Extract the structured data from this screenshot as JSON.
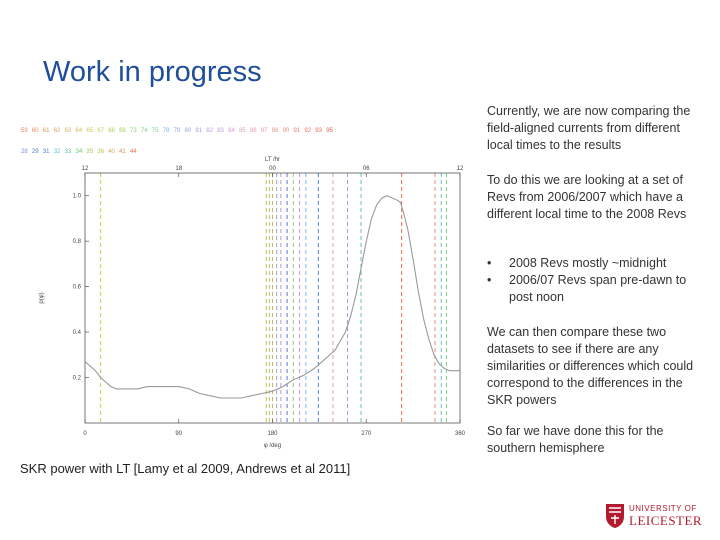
{
  "slide": {
    "title": "Work in progress",
    "caption": "SKR power with LT [Lamy et al 2009, Andrews et al 2011]",
    "paragraphs": [
      "Currently, we are now comparing the field-aligned currents from different local times to the results",
      "To do this we are looking at a set of Revs from 2006/2007 which have a different local time to the 2008 Revs",
      "We can then compare these two datasets to see if there are any similarities or differences which could correspond to the differences in the SKR powers",
      "So far we have done this for the southern hemisphere"
    ],
    "bullets": [
      "2008 Revs mostly ~midnight",
      "2006/07 Revs span pre-dawn to post noon"
    ],
    "bullet_glyph": "•",
    "logo": {
      "line1": "UNIVERSITY OF",
      "line2": "LEICESTER",
      "color": "#b01c2e"
    }
  },
  "chart_data": {
    "type": "line",
    "xlabel": "φ /deg",
    "ylabel": "p(φ)",
    "top_axis_label": "LT /hr",
    "xlim": [
      0,
      360
    ],
    "ylim": [
      0.0,
      1.1
    ],
    "xticks": [
      "0",
      "90",
      "180",
      "270",
      "360"
    ],
    "yticks": [
      "0.2",
      "0.4",
      "0.6",
      "0.8",
      "1.0"
    ],
    "top_ticks": [
      {
        "lt": "12",
        "phi": 0
      },
      {
        "lt": "18",
        "phi": 90
      },
      {
        "lt": "00",
        "phi": 180
      },
      {
        "lt": "06",
        "phi": 270
      },
      {
        "lt": "12",
        "phi": 360
      }
    ],
    "legend_rows": [
      {
        "labels": [
          "59",
          "60",
          "61",
          "62",
          "63",
          "64",
          "65",
          "67",
          "68",
          "69",
          "73",
          "74",
          "75",
          "78",
          "79",
          "80",
          "81",
          "82",
          "83",
          "84",
          "85",
          "86",
          "87",
          "88",
          "90",
          "91",
          "92",
          "93",
          "95"
        ],
        "colors": [
          "#e9876a",
          "#e58a5e",
          "#e0955a",
          "#dca05a",
          "#d9ac5a",
          "#d6b55a",
          "#d4c05a",
          "#c6c85a",
          "#b3cc5a",
          "#9fce5e",
          "#8cd06c",
          "#7dd280",
          "#78d4a0",
          "#7fb9e6",
          "#8aa8e8",
          "#9aa0ea",
          "#a99ae4",
          "#b899dc",
          "#c59ad5",
          "#d39ad0",
          "#de9ac8",
          "#e49ab4",
          "#e99a9e",
          "#ea958c",
          "#e98a7c",
          "#e8806c",
          "#e5765e",
          "#e26d56",
          "#de6650"
        ]
      },
      {
        "labels": [
          "28",
          "29",
          "31",
          "32",
          "33",
          "34",
          "35",
          "36",
          "40",
          "41",
          "44"
        ],
        "colors": [
          "#7a8fe0",
          "#5d78d8",
          "#4b86d6",
          "#5cc4d6",
          "#58c8a6",
          "#62c870",
          "#9ccf56",
          "#c8c04e",
          "#d6a64e",
          "#d98e58",
          "#dc7556"
        ]
      }
    ],
    "curve": {
      "name": "p(φ)",
      "color": "#9a9a9a",
      "x": [
        0,
        5,
        10,
        15,
        20,
        25,
        30,
        40,
        50,
        60,
        70,
        80,
        90,
        100,
        110,
        120,
        130,
        140,
        150,
        160,
        170,
        180,
        190,
        200,
        210,
        220,
        230,
        240,
        245,
        250,
        255,
        260,
        265,
        270,
        275,
        280,
        285,
        290,
        295,
        300,
        303,
        306,
        310,
        315,
        320,
        325,
        330,
        335,
        340,
        345,
        350,
        355,
        360
      ],
      "y": [
        0.27,
        0.25,
        0.23,
        0.2,
        0.18,
        0.16,
        0.15,
        0.15,
        0.15,
        0.16,
        0.16,
        0.16,
        0.16,
        0.15,
        0.13,
        0.12,
        0.11,
        0.11,
        0.11,
        0.12,
        0.13,
        0.14,
        0.16,
        0.19,
        0.21,
        0.24,
        0.28,
        0.32,
        0.36,
        0.4,
        0.47,
        0.56,
        0.68,
        0.8,
        0.9,
        0.96,
        0.99,
        1.0,
        0.99,
        0.98,
        0.97,
        0.92,
        0.85,
        0.72,
        0.58,
        0.46,
        0.37,
        0.3,
        0.26,
        0.24,
        0.23,
        0.23,
        0.23
      ]
    },
    "vlines": [
      {
        "phi": 15,
        "color": "#c4cf5a"
      },
      {
        "phi": 174,
        "color": "#c8c04e"
      },
      {
        "phi": 177,
        "color": "#a6cd5a"
      },
      {
        "phi": 180,
        "color": "#d6b55a"
      },
      {
        "phi": 184,
        "color": "#9aa0ea"
      },
      {
        "phi": 188,
        "color": "#b899dc"
      },
      {
        "phi": 194,
        "color": "#5d78d8"
      },
      {
        "phi": 200,
        "color": "#8cd06c"
      },
      {
        "phi": 206,
        "color": "#c59ad5"
      },
      {
        "phi": 212,
        "color": "#7fb9e6"
      },
      {
        "phi": 224,
        "color": "#4b86d6"
      },
      {
        "phi": 238,
        "color": "#de9ac8"
      },
      {
        "phi": 252,
        "color": "#a99ae4"
      },
      {
        "phi": 265,
        "color": "#58c8a6"
      },
      {
        "phi": 304,
        "color": "#e26d56"
      },
      {
        "phi": 336,
        "color": "#e98a7c"
      },
      {
        "phi": 342,
        "color": "#5cc4d6"
      },
      {
        "phi": 347,
        "color": "#7dd280"
      }
    ],
    "grid": false,
    "legend_placement": "top-left, above plot"
  }
}
